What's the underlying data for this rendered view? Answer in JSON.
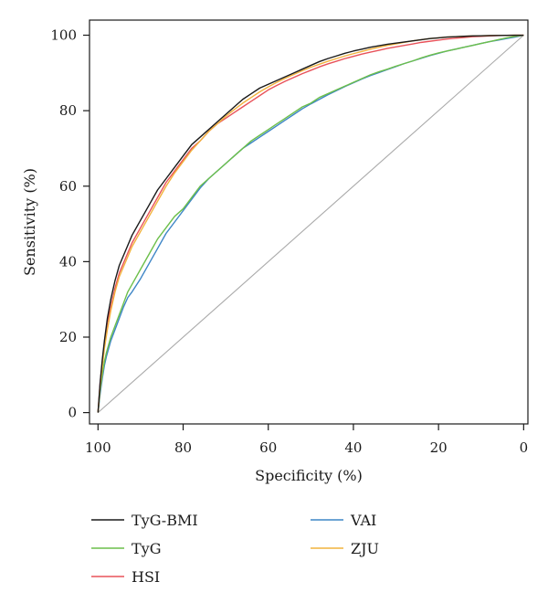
{
  "chart_data": {
    "type": "line",
    "xlabel": "Specificity (%)",
    "ylabel": "Sensitivity (%)",
    "xlim": [
      102,
      -1
    ],
    "ylim": [
      -3,
      104
    ],
    "x_reversed": true,
    "xticks": [
      100,
      80,
      60,
      40,
      20,
      0
    ],
    "yticks": [
      0,
      20,
      40,
      60,
      80,
      100
    ],
    "grid": false,
    "legend_position": "bottom",
    "reference_line": {
      "from": [
        100,
        0
      ],
      "to": [
        0,
        100
      ],
      "color": "#aaaaaa"
    },
    "series": [
      {
        "name": "TyG-BMI",
        "color": "#1a1a1a",
        "points": [
          [
            100,
            0
          ],
          [
            99.5,
            8
          ],
          [
            99,
            14
          ],
          [
            98.5,
            19
          ],
          [
            97.8,
            25
          ],
          [
            97,
            30
          ],
          [
            96,
            35
          ],
          [
            95,
            39
          ],
          [
            93.5,
            43
          ],
          [
            92,
            47
          ],
          [
            90,
            51
          ],
          [
            88,
            55
          ],
          [
            86,
            59
          ],
          [
            84,
            62
          ],
          [
            82,
            65
          ],
          [
            80,
            68
          ],
          [
            78,
            71
          ],
          [
            76,
            73
          ],
          [
            74,
            75
          ],
          [
            72,
            77
          ],
          [
            70,
            79
          ],
          [
            68,
            81
          ],
          [
            66,
            83
          ],
          [
            64,
            84.5
          ],
          [
            62,
            86
          ],
          [
            60,
            87
          ],
          [
            58,
            88
          ],
          [
            56,
            89
          ],
          [
            54,
            90
          ],
          [
            52,
            91
          ],
          [
            50,
            92
          ],
          [
            48,
            93
          ],
          [
            46,
            93.8
          ],
          [
            44,
            94.5
          ],
          [
            42,
            95.2
          ],
          [
            40,
            95.8
          ],
          [
            38,
            96.3
          ],
          [
            36,
            96.8
          ],
          [
            34,
            97.2
          ],
          [
            32,
            97.6
          ],
          [
            30,
            97.9
          ],
          [
            28,
            98.2
          ],
          [
            26,
            98.5
          ],
          [
            24,
            98.8
          ],
          [
            22,
            99.1
          ],
          [
            20,
            99.3
          ],
          [
            18,
            99.5
          ],
          [
            16,
            99.6
          ],
          [
            14,
            99.7
          ],
          [
            12,
            99.8
          ],
          [
            10,
            99.85
          ],
          [
            8,
            99.9
          ],
          [
            6,
            99.92
          ],
          [
            4,
            99.95
          ],
          [
            2,
            99.98
          ],
          [
            0,
            100
          ]
        ]
      },
      {
        "name": "TyG",
        "color": "#6cbf4a",
        "points": [
          [
            100,
            0
          ],
          [
            99.5,
            6
          ],
          [
            99,
            10
          ],
          [
            98.5,
            13.5
          ],
          [
            98,
            16
          ],
          [
            97,
            20
          ],
          [
            96,
            23
          ],
          [
            95,
            26
          ],
          [
            94,
            29
          ],
          [
            93,
            32
          ],
          [
            92,
            34
          ],
          [
            90,
            38
          ],
          [
            88,
            42
          ],
          [
            86,
            46
          ],
          [
            84,
            49
          ],
          [
            82,
            52
          ],
          [
            80,
            54
          ],
          [
            78,
            57
          ],
          [
            76,
            60
          ],
          [
            74,
            62
          ],
          [
            72,
            64
          ],
          [
            70,
            66
          ],
          [
            68,
            68
          ],
          [
            66,
            70
          ],
          [
            64,
            72
          ],
          [
            62,
            73.5
          ],
          [
            60,
            75
          ],
          [
            58,
            76.5
          ],
          [
            56,
            78
          ],
          [
            54,
            79.5
          ],
          [
            52,
            81
          ],
          [
            50,
            82
          ],
          [
            48,
            83.5
          ],
          [
            46,
            84.5
          ],
          [
            44,
            85.5
          ],
          [
            42,
            86.5
          ],
          [
            40,
            87.5
          ],
          [
            38,
            88.5
          ],
          [
            36,
            89.5
          ],
          [
            34,
            90.3
          ],
          [
            32,
            91
          ],
          [
            30,
            91.8
          ],
          [
            28,
            92.5
          ],
          [
            26,
            93.2
          ],
          [
            24,
            94
          ],
          [
            22,
            94.7
          ],
          [
            20,
            95.3
          ],
          [
            18,
            95.8
          ],
          [
            16,
            96.3
          ],
          [
            14,
            96.8
          ],
          [
            12,
            97.3
          ],
          [
            10,
            97.8
          ],
          [
            8,
            98.3
          ],
          [
            6,
            98.8
          ],
          [
            4,
            99.3
          ],
          [
            2,
            99.7
          ],
          [
            0,
            100
          ]
        ]
      },
      {
        "name": "HSI",
        "color": "#e8525a",
        "points": [
          [
            100,
            0
          ],
          [
            99.5,
            8
          ],
          [
            99,
            13
          ],
          [
            98.5,
            18
          ],
          [
            97.8,
            24
          ],
          [
            97,
            28
          ],
          [
            96,
            33
          ],
          [
            95,
            37
          ],
          [
            93.5,
            41
          ],
          [
            92,
            45
          ],
          [
            90,
            49
          ],
          [
            88,
            53
          ],
          [
            86,
            57
          ],
          [
            84,
            61
          ],
          [
            82,
            64
          ],
          [
            80,
            67
          ],
          [
            78,
            70
          ],
          [
            76,
            72
          ],
          [
            74,
            74.5
          ],
          [
            72,
            76.5
          ],
          [
            70,
            78
          ],
          [
            68,
            79.5
          ],
          [
            66,
            81
          ],
          [
            64,
            82.5
          ],
          [
            62,
            84
          ],
          [
            60,
            85.5
          ],
          [
            58,
            86.7
          ],
          [
            56,
            87.8
          ],
          [
            54,
            88.8
          ],
          [
            52,
            89.8
          ],
          [
            50,
            90.7
          ],
          [
            48,
            91.6
          ],
          [
            46,
            92.4
          ],
          [
            44,
            93.1
          ],
          [
            42,
            93.8
          ],
          [
            40,
            94.4
          ],
          [
            38,
            95
          ],
          [
            36,
            95.5
          ],
          [
            34,
            96
          ],
          [
            32,
            96.5
          ],
          [
            30,
            96.9
          ],
          [
            28,
            97.3
          ],
          [
            26,
            97.7
          ],
          [
            24,
            98.1
          ],
          [
            22,
            98.4
          ],
          [
            20,
            98.7
          ],
          [
            18,
            99
          ],
          [
            16,
            99.2
          ],
          [
            14,
            99.4
          ],
          [
            12,
            99.6
          ],
          [
            10,
            99.7
          ],
          [
            8,
            99.8
          ],
          [
            6,
            99.9
          ],
          [
            4,
            99.95
          ],
          [
            2,
            99.98
          ],
          [
            0,
            100
          ]
        ]
      },
      {
        "name": "VAI",
        "color": "#3d85c6",
        "points": [
          [
            100,
            0
          ],
          [
            99.5,
            5
          ],
          [
            99,
            9
          ],
          [
            98.5,
            12.5
          ],
          [
            98,
            15
          ],
          [
            97,
            19
          ],
          [
            96,
            22
          ],
          [
            95,
            25
          ],
          [
            94,
            28
          ],
          [
            93,
            30.5
          ],
          [
            92,
            32
          ],
          [
            90,
            35.5
          ],
          [
            88,
            39.5
          ],
          [
            86,
            43.5
          ],
          [
            84,
            47.5
          ],
          [
            82,
            50.5
          ],
          [
            80,
            53.5
          ],
          [
            78,
            56.5
          ],
          [
            76,
            59.5
          ],
          [
            74,
            62
          ],
          [
            72,
            64
          ],
          [
            70,
            66
          ],
          [
            68,
            68
          ],
          [
            66,
            70
          ],
          [
            64,
            71.5
          ],
          [
            62,
            73
          ],
          [
            60,
            74.5
          ],
          [
            58,
            76
          ],
          [
            56,
            77.5
          ],
          [
            54,
            79
          ],
          [
            52,
            80.5
          ],
          [
            50,
            81.8
          ],
          [
            48,
            83
          ],
          [
            46,
            84.2
          ],
          [
            44,
            85.3
          ],
          [
            42,
            86.4
          ],
          [
            40,
            87.4
          ],
          [
            38,
            88.4
          ],
          [
            36,
            89.3
          ],
          [
            34,
            90.1
          ],
          [
            32,
            90.9
          ],
          [
            30,
            91.7
          ],
          [
            28,
            92.5
          ],
          [
            26,
            93.2
          ],
          [
            24,
            93.9
          ],
          [
            22,
            94.6
          ],
          [
            20,
            95.2
          ],
          [
            18,
            95.8
          ],
          [
            16,
            96.3
          ],
          [
            14,
            96.8
          ],
          [
            12,
            97.3
          ],
          [
            10,
            97.8
          ],
          [
            8,
            98.3
          ],
          [
            6,
            98.7
          ],
          [
            4,
            99.1
          ],
          [
            2,
            99.5
          ],
          [
            0,
            100
          ]
        ]
      },
      {
        "name": "ZJU",
        "color": "#f2b33d",
        "points": [
          [
            100,
            0
          ],
          [
            99.5,
            7
          ],
          [
            99,
            12
          ],
          [
            98.5,
            17
          ],
          [
            97.8,
            22
          ],
          [
            97,
            27
          ],
          [
            96,
            32
          ],
          [
            95,
            36
          ],
          [
            93.5,
            40
          ],
          [
            92,
            44
          ],
          [
            90,
            48
          ],
          [
            88,
            52
          ],
          [
            86,
            56
          ],
          [
            84,
            60
          ],
          [
            82,
            63.5
          ],
          [
            80,
            66.5
          ],
          [
            78,
            69.5
          ],
          [
            76,
            72
          ],
          [
            74,
            74.5
          ],
          [
            72,
            76.5
          ],
          [
            70,
            78.5
          ],
          [
            68,
            80.3
          ],
          [
            66,
            82
          ],
          [
            64,
            83.5
          ],
          [
            62,
            85
          ],
          [
            60,
            86.3
          ],
          [
            58,
            87.5
          ],
          [
            56,
            88.6
          ],
          [
            54,
            89.6
          ],
          [
            52,
            90.6
          ],
          [
            50,
            91.5
          ],
          [
            48,
            92.3
          ],
          [
            46,
            93.1
          ],
          [
            44,
            93.8
          ],
          [
            42,
            94.5
          ],
          [
            40,
            95.1
          ],
          [
            38,
            95.7
          ],
          [
            36,
            96.3
          ],
          [
            34,
            96.8
          ],
          [
            32,
            97.3
          ],
          [
            30,
            97.7
          ],
          [
            28,
            98.1
          ],
          [
            26,
            98.5
          ],
          [
            24,
            98.8
          ],
          [
            22,
            99.1
          ],
          [
            20,
            99.3
          ],
          [
            18,
            99.5
          ],
          [
            16,
            99.6
          ],
          [
            14,
            99.7
          ],
          [
            12,
            99.8
          ],
          [
            10,
            99.85
          ],
          [
            8,
            99.9
          ],
          [
            6,
            99.93
          ],
          [
            4,
            99.96
          ],
          [
            2,
            99.98
          ],
          [
            0,
            100
          ]
        ]
      }
    ]
  }
}
